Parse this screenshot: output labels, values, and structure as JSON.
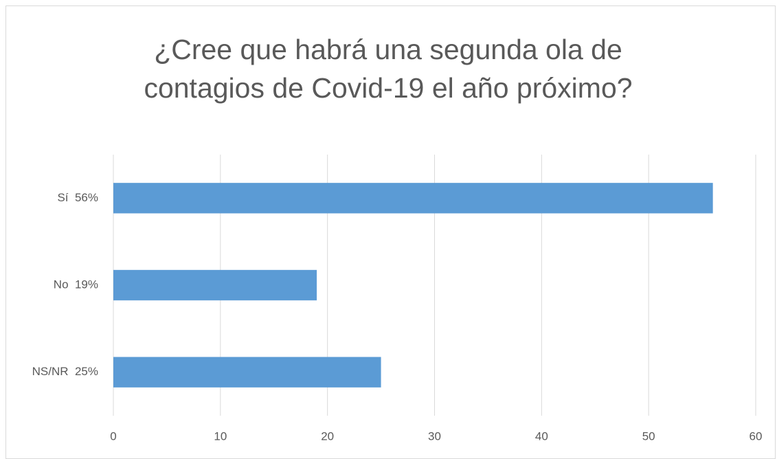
{
  "chart_data": {
    "type": "bar",
    "orientation": "horizontal",
    "title": "¿Cree que habrá una segunda ola de contagios de Covid-19 el año próximo?",
    "categories": [
      "Sí  56%",
      "No  19%",
      "NS/NR  25%"
    ],
    "values": [
      56,
      19,
      25
    ],
    "color": "#5b9bd5",
    "xlim": [
      0,
      60
    ],
    "xticks": [
      0,
      10,
      20,
      30,
      40,
      50,
      60
    ],
    "grid": true
  }
}
